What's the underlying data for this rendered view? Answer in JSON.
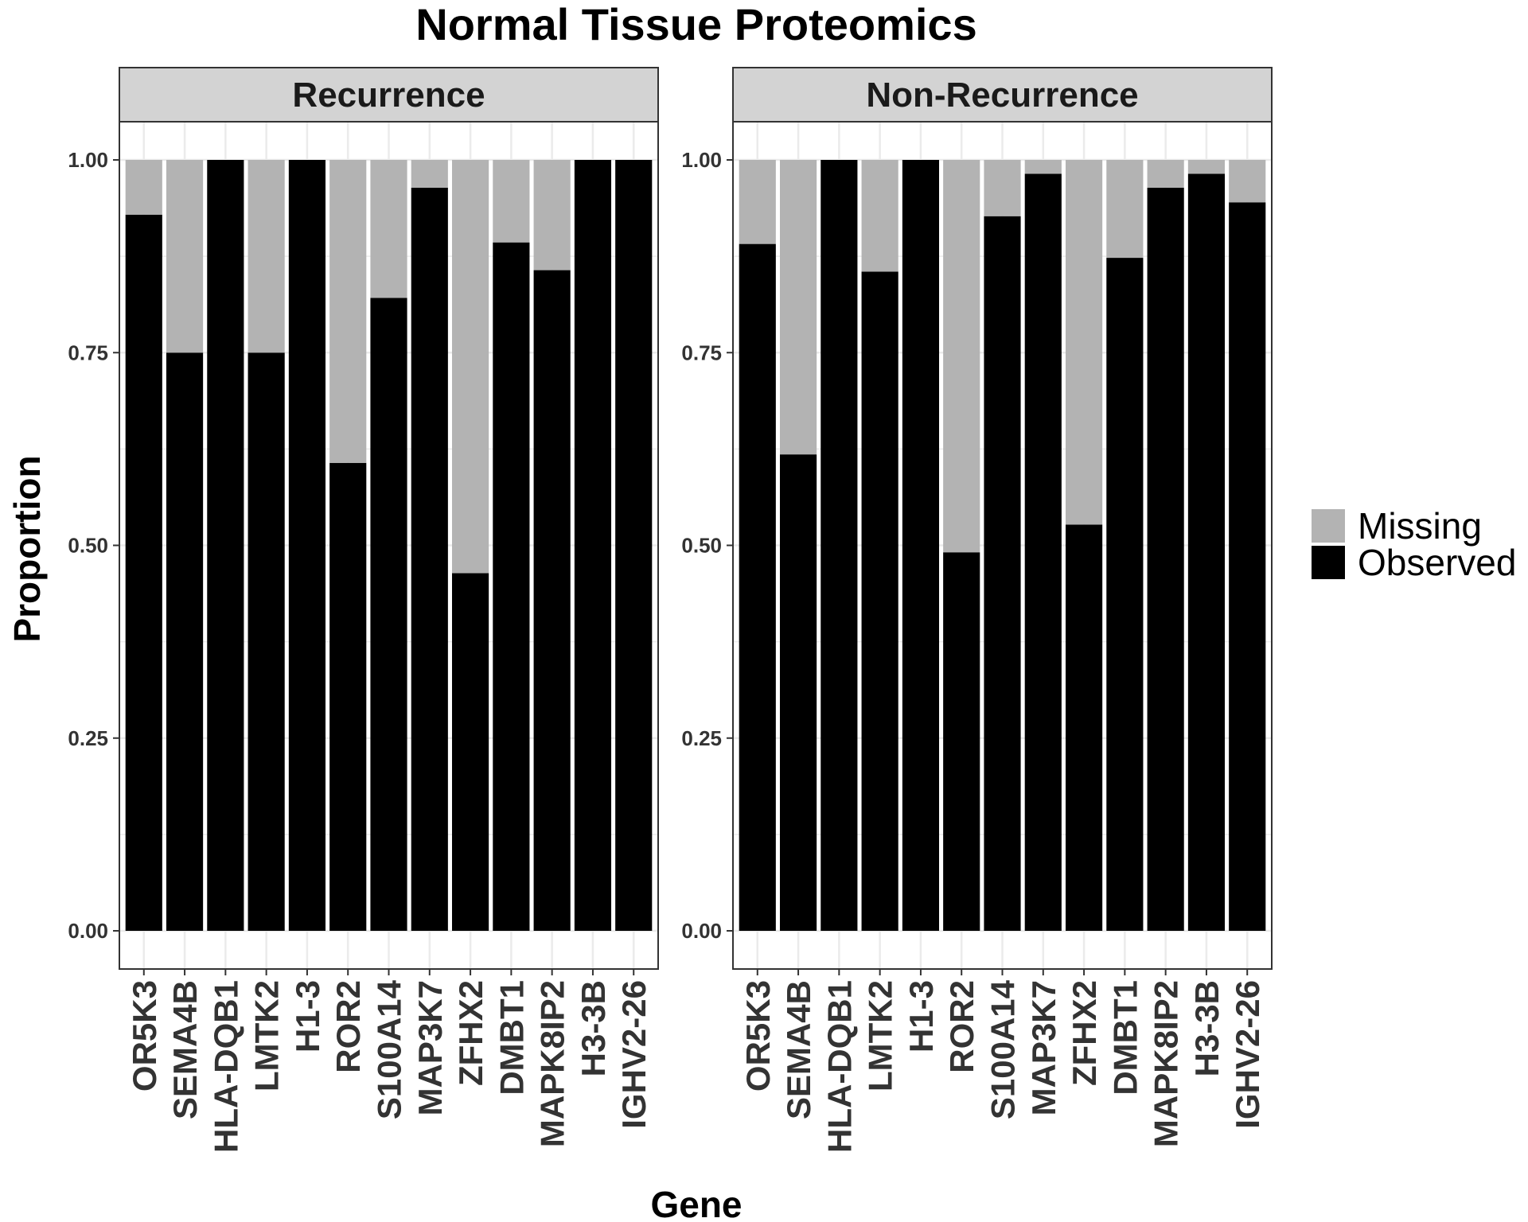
{
  "chart_data": {
    "type": "bar",
    "stacked": true,
    "title": "Normal Tissue Proteomics",
    "xlabel": "Gene",
    "ylabel": "Proportion",
    "ylim": [
      0,
      1.05
    ],
    "yticks": [
      "0.00",
      "0.25",
      "0.50",
      "0.75",
      "1.00"
    ],
    "grid": true,
    "legend_position": "right",
    "legend": [
      {
        "name": "Missing",
        "color": "#b3b3b3"
      },
      {
        "name": "Observed",
        "color": "#000000"
      }
    ],
    "categories": [
      "OR5K3",
      "SEMA4B",
      "HLA-DQB1",
      "LMTK2",
      "H1-3",
      "ROR2",
      "S100A14",
      "MAP3K7",
      "ZFHX2",
      "DMBT1",
      "MAPK8IP2",
      "H3-3B",
      "IGHV2-26"
    ],
    "panels": [
      {
        "name": "Recurrence",
        "series": [
          {
            "name": "Observed",
            "values": [
              0.929,
              0.75,
              1.0,
              0.75,
              1.0,
              0.607,
              0.821,
              0.964,
              0.464,
              0.893,
              0.857,
              1.0,
              1.0
            ]
          },
          {
            "name": "Missing",
            "values": [
              0.071,
              0.25,
              0.0,
              0.25,
              0.0,
              0.393,
              0.179,
              0.036,
              0.536,
              0.107,
              0.143,
              0.0,
              0.0
            ]
          }
        ]
      },
      {
        "name": "Non-Recurrence",
        "series": [
          {
            "name": "Observed",
            "values": [
              0.891,
              0.618,
              1.0,
              0.855,
              1.0,
              0.491,
              0.927,
              0.982,
              0.527,
              0.873,
              0.964,
              0.982,
              0.945
            ]
          },
          {
            "name": "Missing",
            "values": [
              0.109,
              0.382,
              0.0,
              0.145,
              0.0,
              0.509,
              0.073,
              0.018,
              0.473,
              0.127,
              0.036,
              0.018,
              0.055
            ]
          }
        ]
      }
    ]
  }
}
